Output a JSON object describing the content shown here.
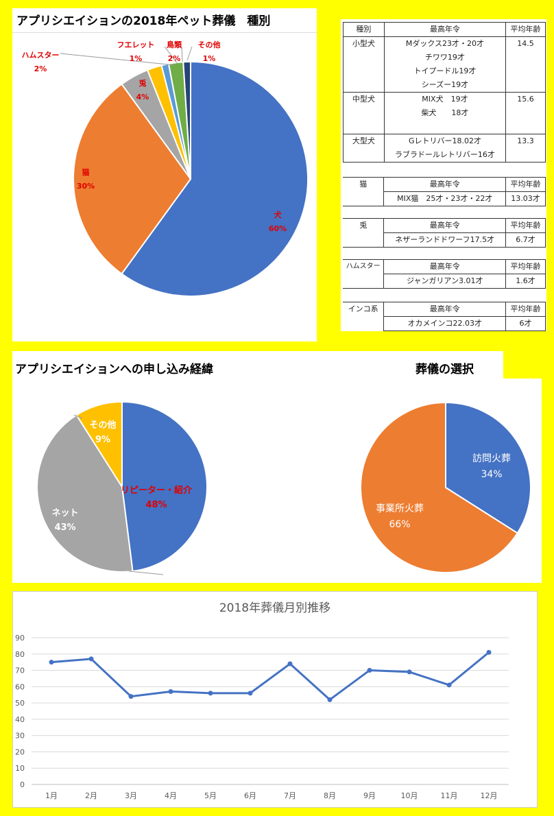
{
  "colors": {
    "background": "#ffff00",
    "blue": "#4472c4",
    "orange": "#ed7d31",
    "gray": "#a5a5a5",
    "yellow": "#ffc000",
    "lightblue": "#5b9bd5",
    "green": "#70ad47",
    "navy": "#264478",
    "label_red": "#e00000"
  },
  "section1": {
    "title": "アプリシエイションの2018年ペット葬儀　種別"
  },
  "section2": {
    "title": "アプリシエイションへの申し込み経緯"
  },
  "section3": {
    "title": "葬儀の選択"
  },
  "tables": {
    "dog": {
      "headers": [
        "種別",
        "最高年令",
        "平均年齢"
      ],
      "rows": [
        {
          "type": "小型犬",
          "max": [
            "Mダックス23才・20才",
            "チワワ19才",
            "トイプードル19才",
            "シーズー19才"
          ],
          "avg": "14.5"
        },
        {
          "type": "中型犬",
          "max": [
            "MIX犬　19才",
            "柴犬　　18才"
          ],
          "avg": "15.6"
        },
        {
          "type": "大型犬",
          "max": [
            "Gレトリバー18.02才",
            "ラブラドールレトリバー16才"
          ],
          "avg": "13.3"
        }
      ]
    },
    "cat": {
      "type": "猫",
      "h_max": "最高年令",
      "h_avg": "平均年齢",
      "max": "MIX猫　25才・23才・22才",
      "avg": "13.03才"
    },
    "rabbit": {
      "type": "兎",
      "h_max": "最高年令",
      "h_avg": "平均年齢",
      "max": "ネザーランドドワーフ17.5才",
      "avg": "6.7才"
    },
    "hamster": {
      "type": "ハムスター",
      "h_max": "最高年令",
      "h_avg": "平均年齢",
      "max": "ジャンガリアン3.01才",
      "avg": "1.6才"
    },
    "parakeet": {
      "type": "インコ系",
      "h_max": "最高年令",
      "h_avg": "平均年齢",
      "max": "オカメインコ22.03才",
      "avg": "6才"
    }
  },
  "chart_data": [
    {
      "type": "pie",
      "title": "アプリシエイションの2018年ペット葬儀　種別",
      "slices": [
        {
          "label": "犬",
          "value": 60,
          "display": "60%",
          "color": "#4472c4"
        },
        {
          "label": "猫",
          "value": 30,
          "display": "30%",
          "color": "#ed7d31"
        },
        {
          "label": "兎",
          "value": 4,
          "display": "4%",
          "color": "#a5a5a5"
        },
        {
          "label": "ハムスター",
          "value": 2,
          "display": "2%",
          "color": "#ffc000"
        },
        {
          "label": "フエレット",
          "value": 1,
          "display": "1%",
          "color": "#5b9bd5"
        },
        {
          "label": "鳥類",
          "value": 2,
          "display": "2%",
          "color": "#70ad47"
        },
        {
          "label": "その他",
          "value": 1,
          "display": "1%",
          "color": "#264478"
        }
      ]
    },
    {
      "type": "pie",
      "title": "アプリシエイションへの申し込み経緯",
      "slices": [
        {
          "label": "リピーター・紹介",
          "value": 48,
          "display": "48%",
          "color": "#4472c4"
        },
        {
          "label": "ネット",
          "value": 43,
          "display": "43%",
          "color": "#a5a5a5"
        },
        {
          "label": "その他",
          "value": 9,
          "display": "9%",
          "color": "#ffc000"
        }
      ]
    },
    {
      "type": "pie",
      "title": "葬儀の選択",
      "slices": [
        {
          "label": "訪問火葬",
          "value": 34,
          "display": "34%",
          "color": "#4472c4"
        },
        {
          "label": "事業所火葬",
          "value": 66,
          "display": "66%",
          "color": "#ed7d31"
        }
      ]
    },
    {
      "type": "line",
      "title": "2018年葬儀月別推移",
      "categories": [
        "1月",
        "2月",
        "3月",
        "4月",
        "5月",
        "6月",
        "7月",
        "8月",
        "9月",
        "10月",
        "11月",
        "12月"
      ],
      "values": [
        75,
        77,
        54,
        57,
        56,
        56,
        74,
        52,
        70,
        69,
        61,
        81
      ],
      "ylim": [
        0,
        90
      ],
      "yticks": [
        0,
        10,
        20,
        30,
        40,
        50,
        60,
        70,
        80,
        90
      ],
      "grid": true,
      "color": "#4472c4"
    }
  ]
}
